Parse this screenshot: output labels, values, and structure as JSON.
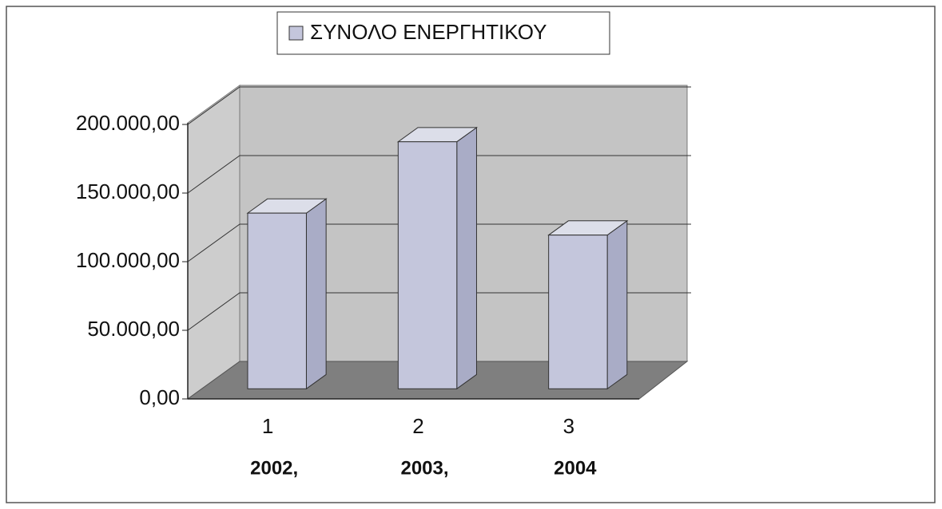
{
  "chart_data": {
    "type": "bar3d",
    "legend": "ΣΥΝΟΛΟ ΕΝΕΡΓΗΤΙΚΟΥ",
    "categories": [
      "1",
      "2",
      "3"
    ],
    "category_sublabels": [
      "2002,",
      "2003,",
      "2004"
    ],
    "values": [
      128000,
      180000,
      112000
    ],
    "color": "#c4c6dc",
    "ylim": [
      0,
      200000
    ],
    "yticks": [
      {
        "value": 0,
        "label": "0,00"
      },
      {
        "value": 50000,
        "label": "50.000,00"
      },
      {
        "value": 100000,
        "label": "100.000,00"
      },
      {
        "value": 150000,
        "label": "150.000,00"
      },
      {
        "value": 200000,
        "label": "200.000,00"
      }
    ],
    "grid": true
  }
}
